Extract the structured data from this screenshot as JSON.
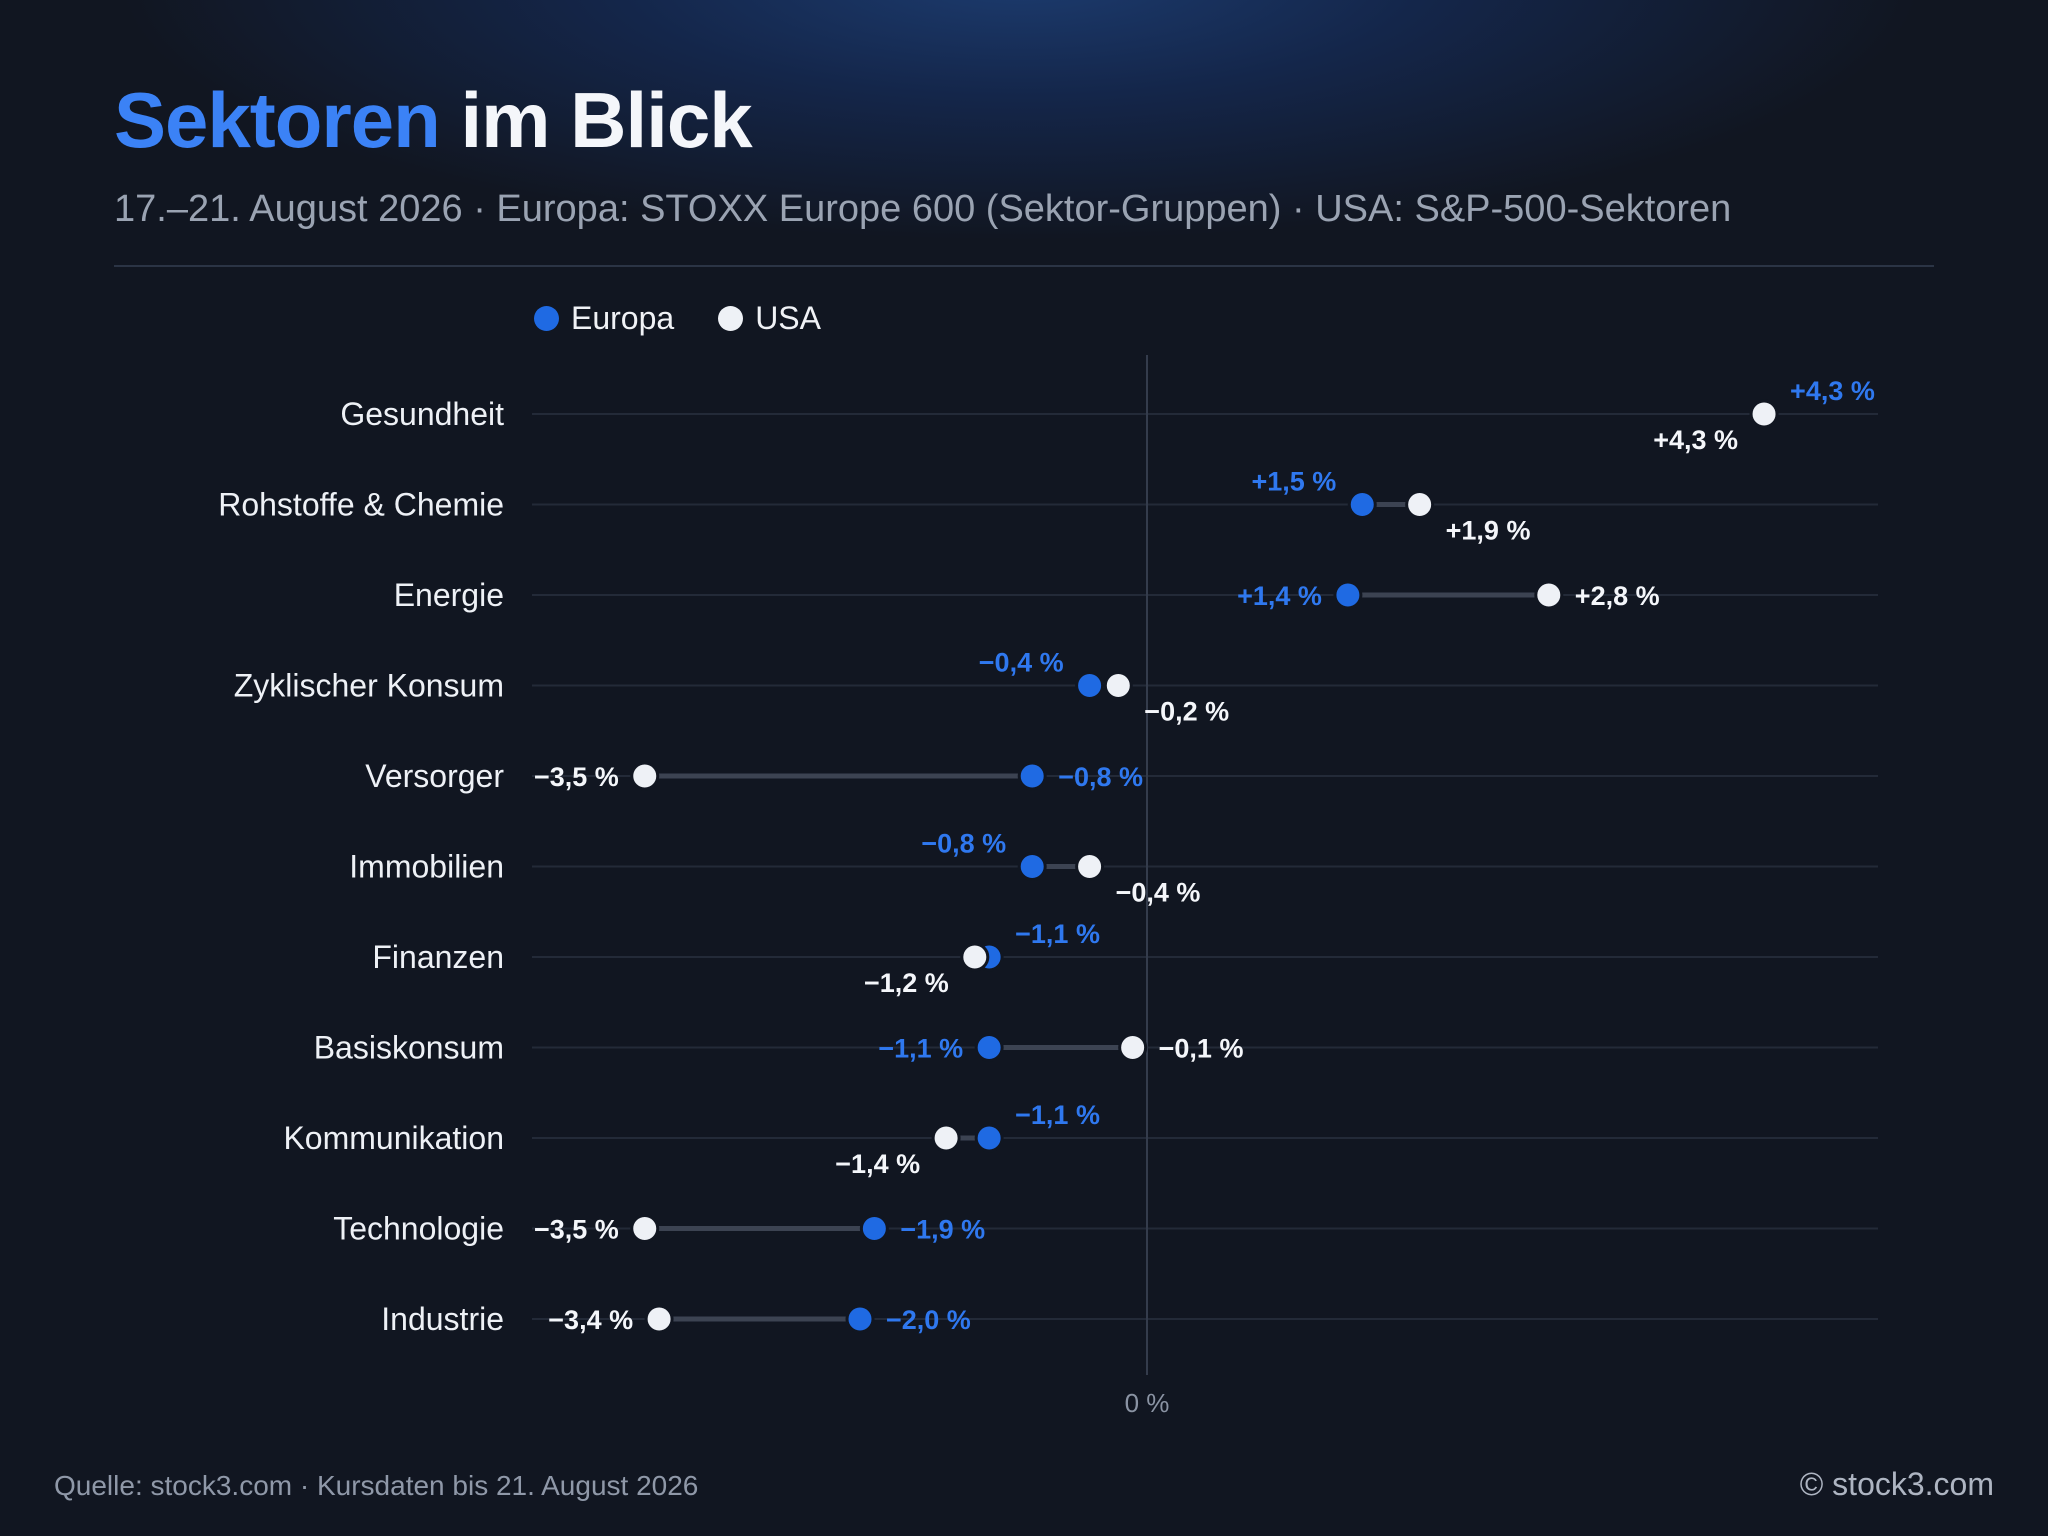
{
  "title": {
    "accent": "Sektoren",
    "rest": " im Blick"
  },
  "subtitle": "17.–21. August 2026 · Europa: STOXX Europe 600 (Sektor-Gruppen) · USA: S&P-500-Sektoren",
  "legend": {
    "europe": "Europa",
    "usa": "USA"
  },
  "colors": {
    "europe": "#1f6ae3",
    "usa": "#eef1f6",
    "europe_label": "#2f78ef",
    "background": "#111621"
  },
  "chart_data": {
    "type": "scatter",
    "subtype": "dumbbell",
    "categories": [
      "Gesundheit",
      "Rohstoffe & Chemie",
      "Energie",
      "Zyklischer Konsum",
      "Versorger",
      "Immobilien",
      "Finanzen",
      "Basiskonsum",
      "Kommunikation",
      "Technologie",
      "Industrie"
    ],
    "series": [
      {
        "name": "Europa",
        "values": [
          4.3,
          1.5,
          1.4,
          -0.4,
          -0.8,
          -0.8,
          -1.1,
          -1.1,
          -1.1,
          -1.9,
          -2.0
        ],
        "labels": [
          "+4,3 %",
          "+1,5 %",
          "+1,4 %",
          "−0,4 %",
          "−0,8 %",
          "−0,8 %",
          "−1,1 %",
          "−1,1 %",
          "−1,1 %",
          "−1,9 %",
          "−2,0 %"
        ]
      },
      {
        "name": "USA",
        "values": [
          4.3,
          1.9,
          2.8,
          -0.2,
          -3.5,
          -0.4,
          -1.2,
          -0.1,
          -1.4,
          -3.5,
          -3.4
        ],
        "labels": [
          "+4,3 %",
          "+1,9 %",
          "+2,8 %",
          "−0,2 %",
          "−3,5 %",
          "−0,4 %",
          "−1,2 %",
          "−0,1 %",
          "−1,4 %",
          "−3,5 %",
          "−3,4 %"
        ]
      }
    ],
    "zero_label": "0 %",
    "xlim": [
      -4.3,
      5.2
    ],
    "legend_position": "top-left",
    "grid": true
  },
  "footer": {
    "source": "Quelle: stock3.com · Kursdaten bis 21. August 2026",
    "copyright": "© stock3.com"
  }
}
